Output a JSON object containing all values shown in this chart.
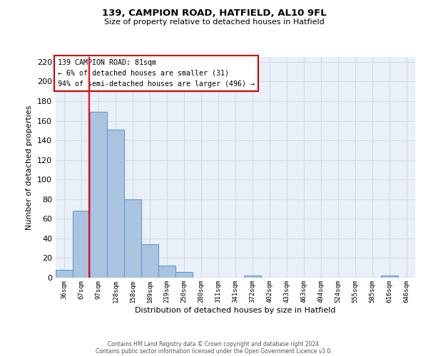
{
  "title": "139, CAMPION ROAD, HATFIELD, AL10 9FL",
  "subtitle": "Size of property relative to detached houses in Hatfield",
  "xlabel": "Distribution of detached houses by size in Hatfield",
  "ylabel": "Number of detached properties",
  "footer_lines": [
    "Contains HM Land Registry data © Crown copyright and database right 2024.",
    "Contains public sector information licensed under the Open Government Licence v3.0."
  ],
  "bin_labels": [
    "36sqm",
    "67sqm",
    "97sqm",
    "128sqm",
    "158sqm",
    "189sqm",
    "219sqm",
    "250sqm",
    "280sqm",
    "311sqm",
    "341sqm",
    "372sqm",
    "402sqm",
    "433sqm",
    "463sqm",
    "494sqm",
    "524sqm",
    "555sqm",
    "585sqm",
    "616sqm",
    "646sqm"
  ],
  "bar_heights": [
    8,
    68,
    169,
    151,
    80,
    34,
    12,
    6,
    0,
    0,
    0,
    2,
    0,
    0,
    0,
    0,
    0,
    0,
    0,
    2,
    0
  ],
  "bar_color": "#aac4e0",
  "bar_edge_color": "#5b9bd5",
  "grid_color": "#d0dce8",
  "bg_color": "#eaf0f7",
  "annotation_box_line1": "139 CAMPION ROAD: 81sqm",
  "annotation_box_line2": "← 6% of detached houses are smaller (31)",
  "annotation_box_line3": "94% of semi-detached houses are larger (496) →",
  "annotation_box_color": "#cc0000",
  "red_line_x": 1.45,
  "ylim": [
    0,
    225
  ],
  "yticks": [
    0,
    20,
    40,
    60,
    80,
    100,
    120,
    140,
    160,
    180,
    200,
    220
  ],
  "figsize": [
    6.0,
    5.0
  ],
  "dpi": 100
}
